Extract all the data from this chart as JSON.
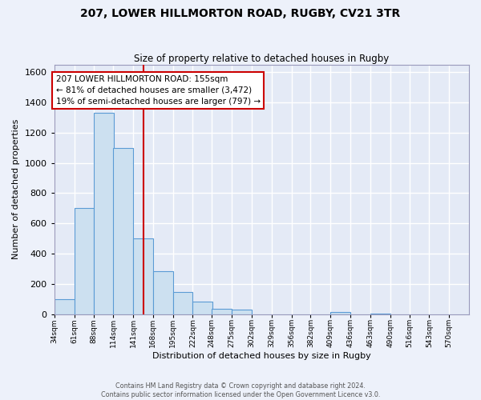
{
  "title": "207, LOWER HILLMORTON ROAD, RUGBY, CV21 3TR",
  "subtitle": "Size of property relative to detached houses in Rugby",
  "xlabel": "Distribution of detached houses by size in Rugby",
  "ylabel": "Number of detached properties",
  "bin_labels": [
    "34sqm",
    "61sqm",
    "88sqm",
    "114sqm",
    "141sqm",
    "168sqm",
    "195sqm",
    "222sqm",
    "248sqm",
    "275sqm",
    "302sqm",
    "329sqm",
    "356sqm",
    "382sqm",
    "409sqm",
    "436sqm",
    "463sqm",
    "490sqm",
    "516sqm",
    "543sqm",
    "570sqm"
  ],
  "bin_edges": [
    34,
    61,
    88,
    114,
    141,
    168,
    195,
    222,
    248,
    275,
    302,
    329,
    356,
    382,
    409,
    436,
    463,
    490,
    516,
    543,
    570
  ],
  "bin_width": 27,
  "bar_heights": [
    100,
    700,
    1330,
    1100,
    500,
    285,
    145,
    80,
    35,
    30,
    0,
    0,
    0,
    0,
    15,
    0,
    5,
    0,
    0,
    0,
    0
  ],
  "bar_color": "#cce0f0",
  "bar_edge_color": "#5b9bd5",
  "vline_x": 155,
  "vline_color": "#cc0000",
  "ylim_max": 1650,
  "yticks": [
    0,
    200,
    400,
    600,
    800,
    1000,
    1200,
    1400,
    1600
  ],
  "annotation_line1": "207 LOWER HILLMORTON ROAD: 155sqm",
  "annotation_line2": "← 81% of detached houses are smaller (3,472)",
  "annotation_line3": "19% of semi-detached houses are larger (797) →",
  "annotation_box_edge_color": "#cc0000",
  "footer1": "Contains HM Land Registry data © Crown copyright and database right 2024.",
  "footer2": "Contains public sector information licensed under the Open Government Licence v3.0.",
  "background_color": "#edf1fa",
  "axes_bg_color": "#e4eaf6",
  "grid_color": "#ffffff"
}
